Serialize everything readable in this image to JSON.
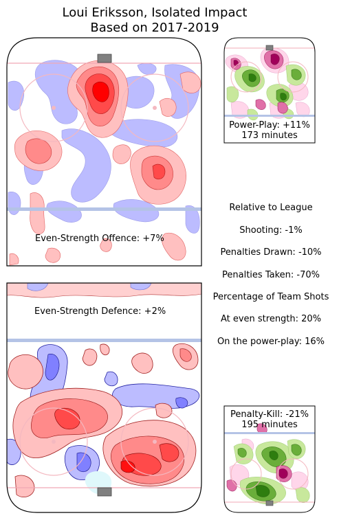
{
  "title": {
    "line1": "Loui Eriksson, Isolated Impact",
    "line2": "Based on 2017-2019"
  },
  "panels": {
    "ev_offence": {
      "label": "Even-Strength Offence: +7%"
    },
    "ev_defence": {
      "label": "Even-Strength Defence: +2%"
    },
    "power_play": {
      "label": "Power-Play: +11%",
      "minutes": "173 minutes"
    },
    "penalty_kill": {
      "label": "Penalty-Kill: -21%",
      "minutes": "195 minutes"
    }
  },
  "stats": {
    "heading": "Relative to League",
    "shooting": "Shooting: -1%",
    "penalties_drawn": "Penalties Drawn: -10%",
    "penalties_taken": "Penalties Taken: -70%",
    "team_shots_heading": "Percentage of Team Shots",
    "even_strength": "At even strength: 20%",
    "power_play": "On the power-play: 16%"
  },
  "colors": {
    "positive": "#ff0000",
    "negative": "#0000ff",
    "pp_positive": "#2e7d0f",
    "pp_negative": "#a0005a",
    "blue_line": "#b4c3e6",
    "goal_line": "#f0a8b4"
  },
  "chart_data": {
    "type": "heatmap",
    "panels": [
      {
        "name": "Even-Strength Offence",
        "value_pct": 7
      },
      {
        "name": "Even-Strength Defence",
        "value_pct": 2
      },
      {
        "name": "Power-Play",
        "value_pct": 11,
        "minutes": 173
      },
      {
        "name": "Penalty-Kill",
        "value_pct": -21,
        "minutes": 195
      }
    ]
  }
}
